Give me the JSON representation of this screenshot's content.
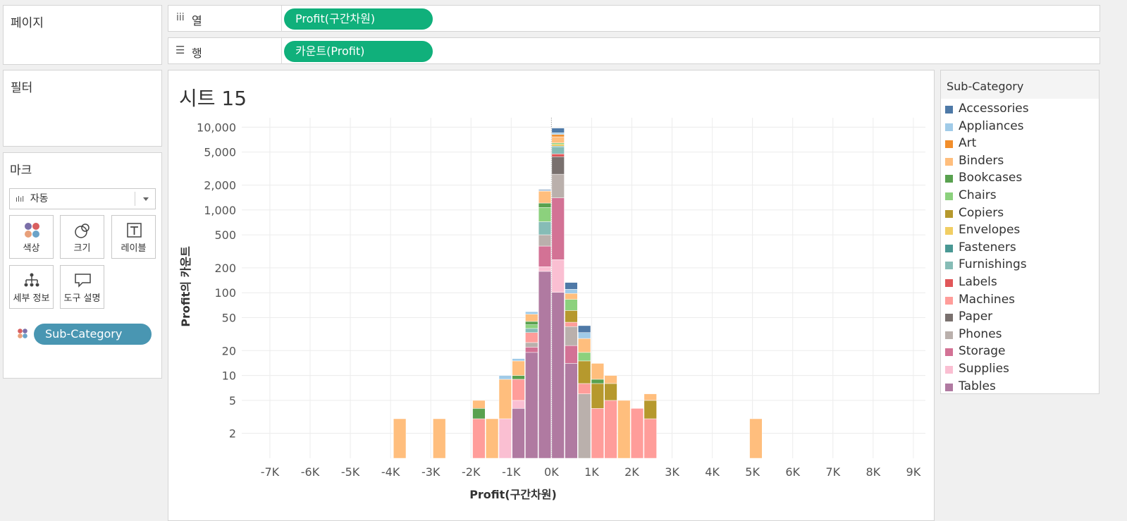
{
  "shelves": {
    "pages_label": "페이지",
    "filters_label": "필터",
    "columns_label": "열",
    "rows_label": "행",
    "column_pill": "Profit(구간차원)",
    "row_pill": "카운트(Profit)"
  },
  "marks": {
    "title": "마크",
    "mark_type": "자동",
    "buttons": {
      "color": "색상",
      "size": "크기",
      "label": "레이블",
      "detail": "세부 정보",
      "tooltip": "도구 설명"
    },
    "color_pill": "Sub-Category"
  },
  "sheet": {
    "title": "시트 15"
  },
  "legend": {
    "title": "Sub-Category",
    "items": [
      {
        "name": "Accessories",
        "color": "#4e79a7"
      },
      {
        "name": "Appliances",
        "color": "#a0cbe8"
      },
      {
        "name": "Art",
        "color": "#f28e2b"
      },
      {
        "name": "Binders",
        "color": "#ffbe7d"
      },
      {
        "name": "Bookcases",
        "color": "#59a14f"
      },
      {
        "name": "Chairs",
        "color": "#8cd17d"
      },
      {
        "name": "Copiers",
        "color": "#b6992d"
      },
      {
        "name": "Envelopes",
        "color": "#f1ce63"
      },
      {
        "name": "Fasteners",
        "color": "#499894"
      },
      {
        "name": "Furnishings",
        "color": "#86bcb6"
      },
      {
        "name": "Labels",
        "color": "#e15759"
      },
      {
        "name": "Machines",
        "color": "#ff9d9a"
      },
      {
        "name": "Paper",
        "color": "#79706e"
      },
      {
        "name": "Phones",
        "color": "#bab0ac"
      },
      {
        "name": "Storage",
        "color": "#d37295"
      },
      {
        "name": "Supplies",
        "color": "#fabfd2"
      },
      {
        "name": "Tables",
        "color": "#b07aa1"
      }
    ]
  },
  "chart_data": {
    "type": "bar",
    "stacked": true,
    "log_scale_y": true,
    "xlabel": "Profit(구간차원)",
    "ylabel": "Profit의 카운트",
    "bin_width": 328,
    "x_tick_labels": [
      "-7K",
      "-6K",
      "-5K",
      "-4K",
      "-3K",
      "-2K",
      "-1K",
      "0K",
      "1K",
      "2K",
      "3K",
      "4K",
      "5K",
      "6K",
      "7K",
      "8K",
      "9K"
    ],
    "x_tick_values": [
      -7000,
      -6000,
      -5000,
      -4000,
      -3000,
      -2000,
      -1000,
      0,
      1000,
      2000,
      3000,
      4000,
      5000,
      6000,
      7000,
      8000,
      9000
    ],
    "y_tick_labels": [
      "2",
      "5",
      "10",
      "20",
      "50",
      "100",
      "200",
      "500",
      "1,000",
      "2,000",
      "5,000",
      "10,000"
    ],
    "y_tick_values": [
      2,
      5,
      10,
      20,
      50,
      100,
      200,
      500,
      1000,
      2000,
      5000,
      10000
    ],
    "ylim": [
      1,
      13000
    ],
    "xlim": [
      -7700,
      9300
    ],
    "grid": true,
    "bins": [
      {
        "x_start": -3936,
        "segments": [
          {
            "cat": "Binders",
            "count": 2
          }
        ]
      },
      {
        "x_start": -2952,
        "segments": [
          {
            "cat": "Binders",
            "count": 2
          }
        ]
      },
      {
        "x_start": -1968,
        "segments": [
          {
            "cat": "Machines",
            "count": 2
          },
          {
            "cat": "Bookcases",
            "count": 1
          },
          {
            "cat": "Binders",
            "count": 1
          }
        ]
      },
      {
        "x_start": -1640,
        "segments": [
          {
            "cat": "Binders",
            "count": 2
          }
        ]
      },
      {
        "x_start": -1312,
        "segments": [
          {
            "cat": "Supplies",
            "count": 2
          },
          {
            "cat": "Binders",
            "count": 6
          },
          {
            "cat": "Appliances",
            "count": 1
          }
        ]
      },
      {
        "x_start": -984,
        "segments": [
          {
            "cat": "Tables",
            "count": 3
          },
          {
            "cat": "Supplies",
            "count": 1
          },
          {
            "cat": "Machines",
            "count": 4
          },
          {
            "cat": "Bookcases",
            "count": 1
          },
          {
            "cat": "Binders",
            "count": 5
          },
          {
            "cat": "Appliances",
            "count": 1
          }
        ]
      },
      {
        "x_start": -656,
        "segments": [
          {
            "cat": "Tables",
            "count": 18
          },
          {
            "cat": "Storage",
            "count": 3
          },
          {
            "cat": "Phones",
            "count": 3
          },
          {
            "cat": "Machines",
            "count": 8
          },
          {
            "cat": "Furnishings",
            "count": 4
          },
          {
            "cat": "Chairs",
            "count": 4
          },
          {
            "cat": "Bookcases",
            "count": 4
          },
          {
            "cat": "Binders",
            "count": 10
          },
          {
            "cat": "Appliances",
            "count": 4
          }
        ]
      },
      {
        "x_start": -328,
        "segments": [
          {
            "cat": "Tables",
            "count": 180
          },
          {
            "cat": "Supplies",
            "count": 25
          },
          {
            "cat": "Storage",
            "count": 160
          },
          {
            "cat": "Phones",
            "count": 135
          },
          {
            "cat": "Furnishings",
            "count": 220
          },
          {
            "cat": "Chairs",
            "count": 350
          },
          {
            "cat": "Bookcases",
            "count": 140
          },
          {
            "cat": "Binders",
            "count": 480
          },
          {
            "cat": "Appliances",
            "count": 30
          },
          {
            "cat": "Accessories",
            "count": 40
          }
        ]
      },
      {
        "x_start": 0,
        "segments": [
          {
            "cat": "Tables",
            "count": 100
          },
          {
            "cat": "Supplies",
            "count": 150
          },
          {
            "cat": "Storage",
            "count": 1150
          },
          {
            "cat": "Phones",
            "count": 1300
          },
          {
            "cat": "Paper",
            "count": 1700
          },
          {
            "cat": "Labels",
            "count": 350
          },
          {
            "cat": "Furnishings",
            "count": 1000
          },
          {
            "cat": "Fasteners",
            "count": 150
          },
          {
            "cat": "Envelopes",
            "count": 300
          },
          {
            "cat": "Chairs",
            "count": 250
          },
          {
            "cat": "Binders",
            "count": 1200
          },
          {
            "cat": "Art",
            "count": 500
          },
          {
            "cat": "Appliances",
            "count": 400
          },
          {
            "cat": "Accessories",
            "count": 1200
          }
        ]
      },
      {
        "x_start": 328,
        "segments": [
          {
            "cat": "Tables",
            "count": 13
          },
          {
            "cat": "Storage",
            "count": 9
          },
          {
            "cat": "Phones",
            "count": 16
          },
          {
            "cat": "Machines",
            "count": 5
          },
          {
            "cat": "Copiers",
            "count": 17
          },
          {
            "cat": "Chairs",
            "count": 22
          },
          {
            "cat": "Binders",
            "count": 15
          },
          {
            "cat": "Appliances",
            "count": 12
          },
          {
            "cat": "Accessories",
            "count": 23
          }
        ]
      },
      {
        "x_start": 656,
        "segments": [
          {
            "cat": "Phones",
            "count": 5
          },
          {
            "cat": "Machines",
            "count": 2
          },
          {
            "cat": "Copiers",
            "count": 7
          },
          {
            "cat": "Chairs",
            "count": 4
          },
          {
            "cat": "Binders",
            "count": 9
          },
          {
            "cat": "Appliances",
            "count": 5
          },
          {
            "cat": "Accessories",
            "count": 7
          }
        ]
      },
      {
        "x_start": 984,
        "segments": [
          {
            "cat": "Machines",
            "count": 3
          },
          {
            "cat": "Copiers",
            "count": 4
          },
          {
            "cat": "Bookcases",
            "count": 1
          },
          {
            "cat": "Binders",
            "count": 5
          }
        ]
      },
      {
        "x_start": 1312,
        "segments": [
          {
            "cat": "Machines",
            "count": 4
          },
          {
            "cat": "Copiers",
            "count": 3
          },
          {
            "cat": "Binders",
            "count": 2
          }
        ]
      },
      {
        "x_start": 1640,
        "segments": [
          {
            "cat": "Binders",
            "count": 4
          }
        ]
      },
      {
        "x_start": 1968,
        "segments": [
          {
            "cat": "Machines",
            "count": 3
          }
        ]
      },
      {
        "x_start": 2296,
        "segments": [
          {
            "cat": "Machines",
            "count": 2
          },
          {
            "cat": "Copiers",
            "count": 2
          },
          {
            "cat": "Binders",
            "count": 1
          }
        ]
      },
      {
        "x_start": 4920,
        "segments": [
          {
            "cat": "Binders",
            "count": 2
          }
        ]
      }
    ]
  }
}
